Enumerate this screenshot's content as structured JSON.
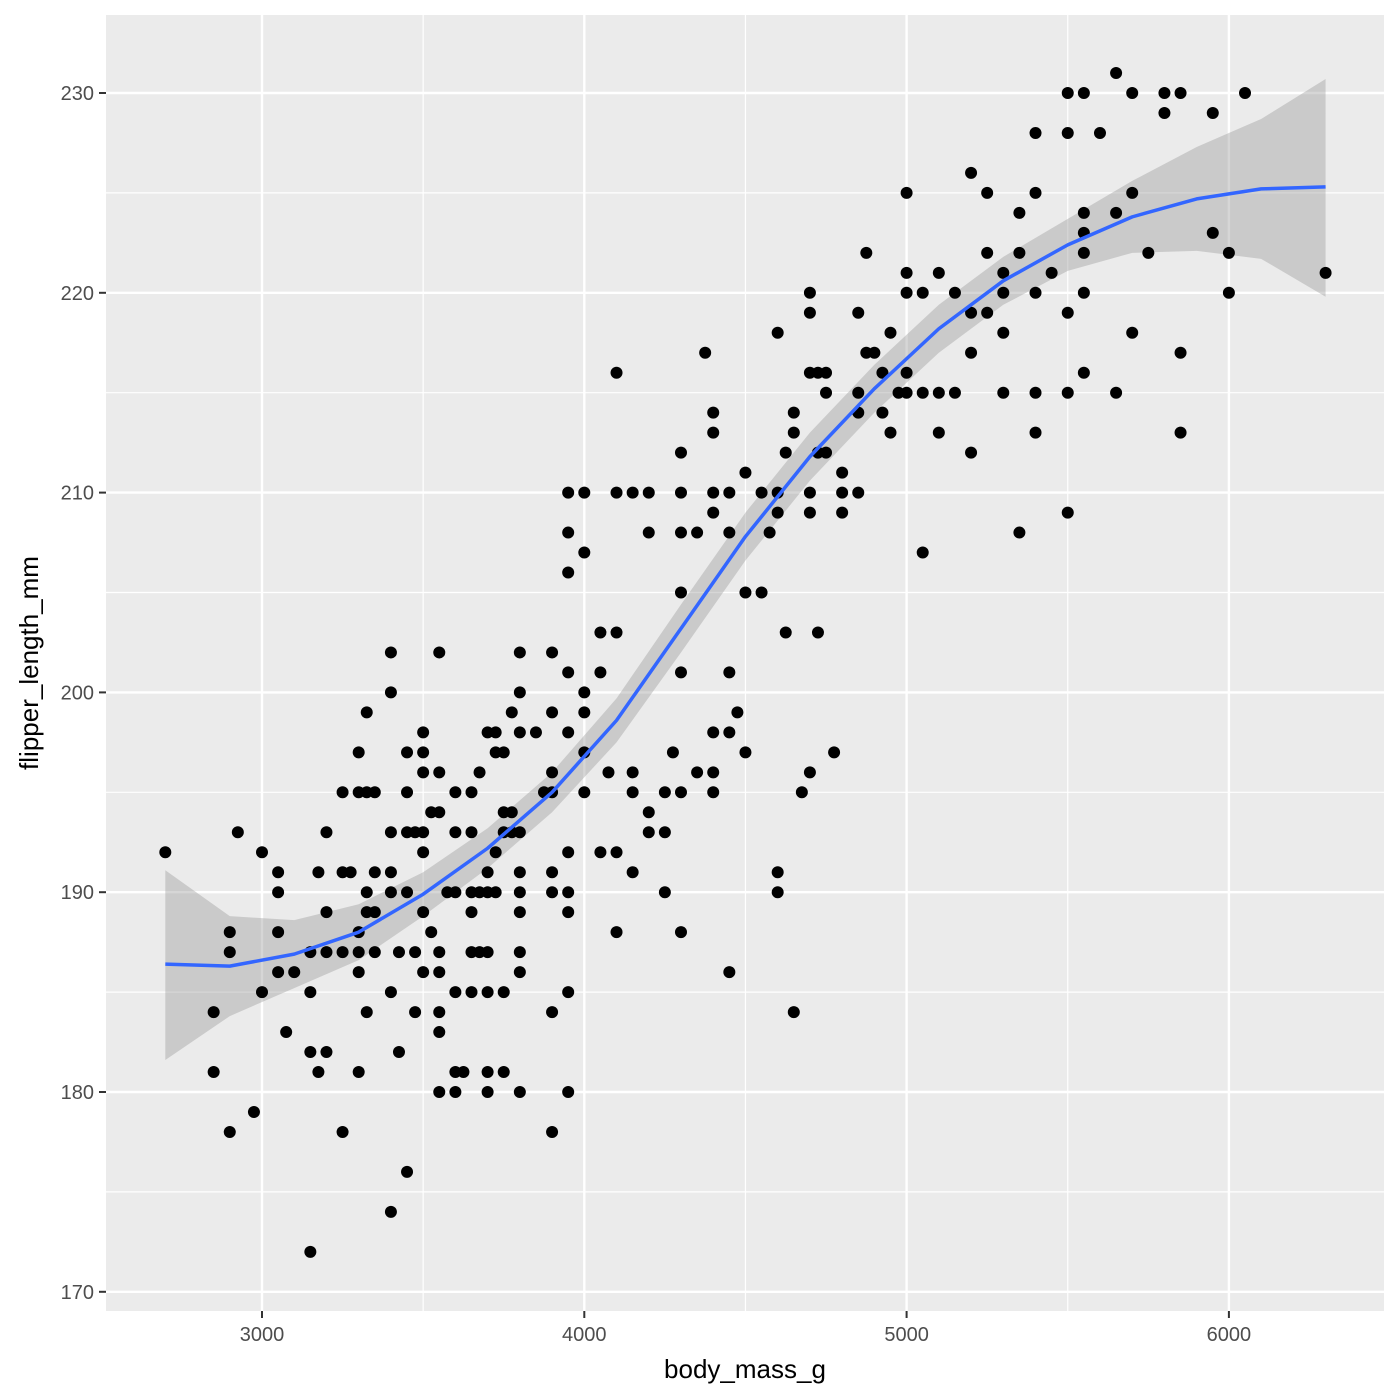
{
  "chart_data": {
    "type": "scatter",
    "title": "",
    "xlabel": "body_mass_g",
    "ylabel": "flipper_length_mm",
    "xlim": [
      2520,
      6480
    ],
    "ylim": [
      169,
      233.9
    ],
    "x_ticks": [
      3000,
      4000,
      5000,
      6000
    ],
    "y_ticks": [
      170,
      180,
      190,
      200,
      210,
      220,
      230
    ],
    "grid": true,
    "legend": null,
    "colors": {
      "panel_background": "#ebebeb",
      "grid_major": "#ffffff",
      "points": "#000000",
      "smooth_line": "#3366ff",
      "confidence_band": "#999999"
    },
    "smooth": {
      "method": "loess",
      "x": [
        2700,
        2900,
        3100,
        3300,
        3500,
        3700,
        3900,
        4100,
        4300,
        4500,
        4700,
        4900,
        5100,
        5300,
        5500,
        5700,
        5900,
        6100,
        6300
      ],
      "y": [
        186.4,
        186.3,
        186.9,
        188.0,
        189.9,
        192.2,
        195.0,
        198.6,
        203.2,
        207.8,
        211.8,
        215.2,
        218.2,
        220.6,
        222.4,
        223.8,
        224.7,
        225.2,
        225.3
      ],
      "upper": [
        191.1,
        188.8,
        188.6,
        189.4,
        191.0,
        193.2,
        196.0,
        199.7,
        204.4,
        209.0,
        213.0,
        216.4,
        219.4,
        221.8,
        223.7,
        225.6,
        227.3,
        228.7,
        230.7
      ],
      "lower": [
        181.6,
        183.8,
        185.2,
        186.6,
        188.8,
        191.2,
        194.0,
        197.5,
        202.0,
        206.6,
        210.6,
        214.0,
        217.0,
        219.4,
        221.1,
        222.0,
        222.1,
        221.7,
        219.8
      ]
    },
    "points": [
      [
        2700,
        192
      ],
      [
        2850,
        184
      ],
      [
        2850,
        181
      ],
      [
        2900,
        188
      ],
      [
        2900,
        187
      ],
      [
        2900,
        178
      ],
      [
        2925,
        193
      ],
      [
        2975,
        179
      ],
      [
        3000,
        185
      ],
      [
        3000,
        192
      ],
      [
        3050,
        188
      ],
      [
        3050,
        186
      ],
      [
        3050,
        190
      ],
      [
        3050,
        191
      ],
      [
        3075,
        183
      ],
      [
        3100,
        186
      ],
      [
        3150,
        187
      ],
      [
        3150,
        185
      ],
      [
        3150,
        182
      ],
      [
        3150,
        172
      ],
      [
        3175,
        181
      ],
      [
        3175,
        191
      ],
      [
        3200,
        193
      ],
      [
        3200,
        189
      ],
      [
        3200,
        187
      ],
      [
        3200,
        182
      ],
      [
        3250,
        195
      ],
      [
        3250,
        191
      ],
      [
        3250,
        187
      ],
      [
        3250,
        178
      ],
      [
        3275,
        191
      ],
      [
        3300,
        197
      ],
      [
        3300,
        195
      ],
      [
        3300,
        188
      ],
      [
        3300,
        187
      ],
      [
        3300,
        186
      ],
      [
        3300,
        181
      ],
      [
        3325,
        199
      ],
      [
        3325,
        195
      ],
      [
        3325,
        190
      ],
      [
        3325,
        189
      ],
      [
        3325,
        184
      ],
      [
        3350,
        195
      ],
      [
        3350,
        191
      ],
      [
        3350,
        189
      ],
      [
        3350,
        187
      ],
      [
        3400,
        202
      ],
      [
        3400,
        200
      ],
      [
        3400,
        193
      ],
      [
        3400,
        191
      ],
      [
        3400,
        190
      ],
      [
        3400,
        185
      ],
      [
        3400,
        174
      ],
      [
        3425,
        187
      ],
      [
        3425,
        182
      ],
      [
        3450,
        197
      ],
      [
        3450,
        195
      ],
      [
        3450,
        193
      ],
      [
        3450,
        190
      ],
      [
        3450,
        176
      ],
      [
        3475,
        193
      ],
      [
        3475,
        187
      ],
      [
        3475,
        184
      ],
      [
        3500,
        198
      ],
      [
        3500,
        197
      ],
      [
        3500,
        196
      ],
      [
        3500,
        193
      ],
      [
        3500,
        192
      ],
      [
        3500,
        189
      ],
      [
        3500,
        186
      ],
      [
        3525,
        194
      ],
      [
        3525,
        188
      ],
      [
        3550,
        202
      ],
      [
        3550,
        196
      ],
      [
        3550,
        194
      ],
      [
        3550,
        187
      ],
      [
        3550,
        186
      ],
      [
        3550,
        184
      ],
      [
        3550,
        183
      ],
      [
        3550,
        180
      ],
      [
        3575,
        190
      ],
      [
        3600,
        195
      ],
      [
        3600,
        193
      ],
      [
        3600,
        190
      ],
      [
        3600,
        185
      ],
      [
        3600,
        181
      ],
      [
        3600,
        180
      ],
      [
        3625,
        181
      ],
      [
        3650,
        195
      ],
      [
        3650,
        193
      ],
      [
        3650,
        190
      ],
      [
        3650,
        189
      ],
      [
        3650,
        187
      ],
      [
        3650,
        185
      ],
      [
        3675,
        196
      ],
      [
        3675,
        190
      ],
      [
        3675,
        187
      ],
      [
        3700,
        198
      ],
      [
        3700,
        191
      ],
      [
        3700,
        190
      ],
      [
        3700,
        187
      ],
      [
        3700,
        185
      ],
      [
        3700,
        181
      ],
      [
        3700,
        180
      ],
      [
        3725,
        198
      ],
      [
        3725,
        197
      ],
      [
        3725,
        192
      ],
      [
        3725,
        190
      ],
      [
        3750,
        197
      ],
      [
        3750,
        194
      ],
      [
        3750,
        193
      ],
      [
        3750,
        185
      ],
      [
        3750,
        181
      ],
      [
        3775,
        199
      ],
      [
        3775,
        194
      ],
      [
        3775,
        193
      ],
      [
        3800,
        202
      ],
      [
        3800,
        200
      ],
      [
        3800,
        198
      ],
      [
        3800,
        193
      ],
      [
        3800,
        191
      ],
      [
        3800,
        190
      ],
      [
        3800,
        189
      ],
      [
        3800,
        187
      ],
      [
        3800,
        186
      ],
      [
        3800,
        180
      ],
      [
        3850,
        198
      ],
      [
        3875,
        195
      ],
      [
        3900,
        202
      ],
      [
        3900,
        199
      ],
      [
        3900,
        196
      ],
      [
        3900,
        195
      ],
      [
        3900,
        191
      ],
      [
        3900,
        190
      ],
      [
        3900,
        184
      ],
      [
        3900,
        178
      ],
      [
        3950,
        210
      ],
      [
        3950,
        208
      ],
      [
        3950,
        206
      ],
      [
        3950,
        201
      ],
      [
        3950,
        198
      ],
      [
        3950,
        192
      ],
      [
        3950,
        190
      ],
      [
        3950,
        189
      ],
      [
        3950,
        185
      ],
      [
        3950,
        180
      ],
      [
        4000,
        210
      ],
      [
        4000,
        207
      ],
      [
        4000,
        200
      ],
      [
        4000,
        199
      ],
      [
        4000,
        197
      ],
      [
        4000,
        195
      ],
      [
        4050,
        203
      ],
      [
        4050,
        201
      ],
      [
        4050,
        192
      ],
      [
        4075,
        196
      ],
      [
        4100,
        216
      ],
      [
        4100,
        210
      ],
      [
        4100,
        203
      ],
      [
        4100,
        192
      ],
      [
        4100,
        188
      ],
      [
        4150,
        210
      ],
      [
        4150,
        196
      ],
      [
        4150,
        195
      ],
      [
        4150,
        191
      ],
      [
        4200,
        210
      ],
      [
        4200,
        208
      ],
      [
        4200,
        194
      ],
      [
        4200,
        193
      ],
      [
        4250,
        195
      ],
      [
        4250,
        193
      ],
      [
        4250,
        190
      ],
      [
        4275,
        197
      ],
      [
        4300,
        212
      ],
      [
        4300,
        210
      ],
      [
        4300,
        208
      ],
      [
        4300,
        205
      ],
      [
        4300,
        201
      ],
      [
        4300,
        195
      ],
      [
        4300,
        188
      ],
      [
        4350,
        208
      ],
      [
        4350,
        196
      ],
      [
        4375,
        217
      ],
      [
        4400,
        214
      ],
      [
        4400,
        213
      ],
      [
        4400,
        210
      ],
      [
        4400,
        209
      ],
      [
        4400,
        198
      ],
      [
        4400,
        196
      ],
      [
        4400,
        195
      ],
      [
        4450,
        210
      ],
      [
        4450,
        208
      ],
      [
        4450,
        201
      ],
      [
        4450,
        198
      ],
      [
        4450,
        186
      ],
      [
        4475,
        199
      ],
      [
        4500,
        211
      ],
      [
        4500,
        205
      ],
      [
        4500,
        197
      ],
      [
        4550,
        210
      ],
      [
        4550,
        205
      ],
      [
        4575,
        208
      ],
      [
        4600,
        218
      ],
      [
        4600,
        210
      ],
      [
        4600,
        209
      ],
      [
        4600,
        191
      ],
      [
        4600,
        190
      ],
      [
        4625,
        212
      ],
      [
        4625,
        203
      ],
      [
        4650,
        214
      ],
      [
        4650,
        213
      ],
      [
        4650,
        184
      ],
      [
        4675,
        195
      ],
      [
        4700,
        220
      ],
      [
        4700,
        219
      ],
      [
        4700,
        216
      ],
      [
        4700,
        210
      ],
      [
        4700,
        209
      ],
      [
        4700,
        196
      ],
      [
        4725,
        216
      ],
      [
        4725,
        212
      ],
      [
        4725,
        203
      ],
      [
        4750,
        216
      ],
      [
        4750,
        215
      ],
      [
        4750,
        212
      ],
      [
        4775,
        197
      ],
      [
        4800,
        211
      ],
      [
        4800,
        210
      ],
      [
        4800,
        209
      ],
      [
        4850,
        219
      ],
      [
        4850,
        215
      ],
      [
        4850,
        214
      ],
      [
        4850,
        210
      ],
      [
        4875,
        222
      ],
      [
        4875,
        217
      ],
      [
        4900,
        217
      ],
      [
        4925,
        216
      ],
      [
        4925,
        214
      ],
      [
        4950,
        218
      ],
      [
        4950,
        213
      ],
      [
        4975,
        215
      ],
      [
        5000,
        225
      ],
      [
        5000,
        221
      ],
      [
        5000,
        220
      ],
      [
        5000,
        216
      ],
      [
        5000,
        215
      ],
      [
        5050,
        220
      ],
      [
        5050,
        215
      ],
      [
        5050,
        207
      ],
      [
        5100,
        221
      ],
      [
        5100,
        215
      ],
      [
        5100,
        213
      ],
      [
        5150,
        220
      ],
      [
        5150,
        215
      ],
      [
        5200,
        226
      ],
      [
        5200,
        219
      ],
      [
        5200,
        217
      ],
      [
        5200,
        212
      ],
      [
        5250,
        225
      ],
      [
        5250,
        222
      ],
      [
        5250,
        219
      ],
      [
        5300,
        221
      ],
      [
        5300,
        220
      ],
      [
        5300,
        218
      ],
      [
        5300,
        215
      ],
      [
        5350,
        224
      ],
      [
        5350,
        222
      ],
      [
        5350,
        208
      ],
      [
        5400,
        228
      ],
      [
        5400,
        225
      ],
      [
        5400,
        220
      ],
      [
        5400,
        215
      ],
      [
        5400,
        213
      ],
      [
        5450,
        221
      ],
      [
        5500,
        230
      ],
      [
        5500,
        228
      ],
      [
        5500,
        219
      ],
      [
        5500,
        215
      ],
      [
        5500,
        209
      ],
      [
        5550,
        230
      ],
      [
        5550,
        224
      ],
      [
        5550,
        223
      ],
      [
        5550,
        222
      ],
      [
        5550,
        220
      ],
      [
        5550,
        216
      ],
      [
        5600,
        228
      ],
      [
        5650,
        231
      ],
      [
        5650,
        224
      ],
      [
        5650,
        215
      ],
      [
        5700,
        230
      ],
      [
        5700,
        225
      ],
      [
        5700,
        218
      ],
      [
        5750,
        222
      ],
      [
        5800,
        230
      ],
      [
        5800,
        229
      ],
      [
        5850,
        230
      ],
      [
        5850,
        217
      ],
      [
        5850,
        213
      ],
      [
        5950,
        229
      ],
      [
        5950,
        223
      ],
      [
        6000,
        222
      ],
      [
        6000,
        220
      ],
      [
        6050,
        230
      ],
      [
        6300,
        221
      ]
    ]
  }
}
